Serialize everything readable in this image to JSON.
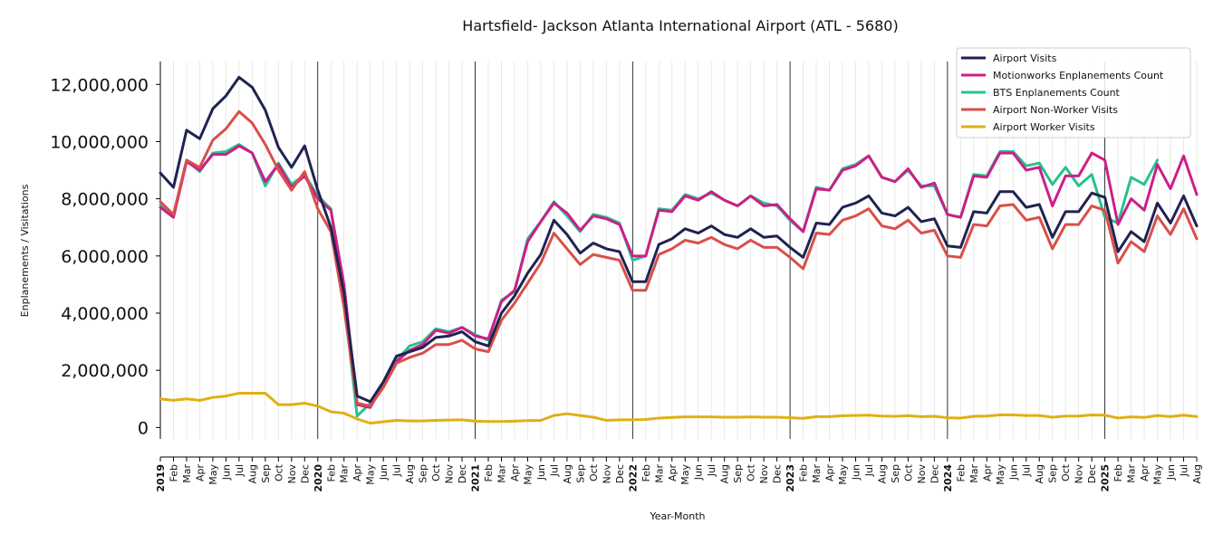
{
  "chart_data": {
    "type": "line",
    "title": "Hartsfield- Jackson Atlanta International Airport (ATL - 5680)",
    "xlabel": "Year-Month",
    "ylabel": "Enplanements / Visitations",
    "ylim": [
      -400000,
      12800000
    ],
    "yticks": [
      0,
      2000000,
      4000000,
      6000000,
      8000000,
      10000000,
      12000000
    ],
    "ytick_labels": [
      "0",
      "2,000,000",
      "4,000,000",
      "6,000,000",
      "8,000,000",
      "10,000,000",
      "12,000,000"
    ],
    "x_labels": [
      "2019",
      "Feb",
      "Mar",
      "Apr",
      "May",
      "Jun",
      "Jul",
      "Aug",
      "Sep",
      "Oct",
      "Nov",
      "Dec",
      "2020",
      "Feb",
      "Mar",
      "Apr",
      "May",
      "Jun",
      "Jul",
      "Aug",
      "Sep",
      "Oct",
      "Nov",
      "Dec",
      "2021",
      "Feb",
      "Mar",
      "Apr",
      "May",
      "Jun",
      "Jul",
      "Aug",
      "Sep",
      "Oct",
      "Nov",
      "Dec",
      "2022",
      "Feb",
      "Mar",
      "Apr",
      "May",
      "Jun",
      "Jul",
      "Aug",
      "Sep",
      "Oct",
      "Nov",
      "Dec",
      "2023",
      "Feb",
      "Mar",
      "Apr",
      "May",
      "Jun",
      "Jul",
      "Aug",
      "Sep",
      "Oct",
      "Nov",
      "Dec",
      "2024",
      "Feb",
      "Mar",
      "Apr",
      "May",
      "Jun",
      "Jul",
      "Aug",
      "Sep",
      "Oct",
      "Nov",
      "Dec",
      "2025",
      "Feb",
      "Mar",
      "Apr",
      "May",
      "Jun",
      "Jul",
      "Aug"
    ],
    "year_boundaries": [
      "2020",
      "2021",
      "2022",
      "2023",
      "2024",
      "2025"
    ],
    "grid": true,
    "legend_position": "top-right",
    "series": [
      {
        "name": "Airport Visits",
        "color": "#1f2352",
        "values": [
          8900000,
          8400000,
          10400000,
          10100000,
          11150000,
          11600000,
          12250000,
          11900000,
          11100000,
          9800000,
          9100000,
          9850000,
          8300000,
          7000000,
          4700000,
          1100000,
          900000,
          1600000,
          2500000,
          2650000,
          2800000,
          3150000,
          3200000,
          3350000,
          3000000,
          2850000,
          4000000,
          4600000,
          5400000,
          6050000,
          7250000,
          6750000,
          6100000,
          6450000,
          6250000,
          6150000,
          5100000,
          5100000,
          6400000,
          6600000,
          6950000,
          6800000,
          7050000,
          6750000,
          6650000,
          6950000,
          6650000,
          6700000,
          6300000,
          5950000,
          7150000,
          7100000,
          7700000,
          7850000,
          8100000,
          7500000,
          7400000,
          7700000,
          7200000,
          7300000,
          6350000,
          6300000,
          7550000,
          7500000,
          8250000,
          8250000,
          7700000,
          7800000,
          6650000,
          7550000,
          7550000,
          8200000,
          8050000,
          6150000,
          6850000,
          6500000,
          7850000,
          7150000,
          8100000,
          7050000
        ]
      },
      {
        "name": "Motionworks Enplanements Count",
        "color": "#cc1f8a",
        "values": [
          7700000,
          7350000,
          9300000,
          9000000,
          9550000,
          9550000,
          9850000,
          9600000,
          8600000,
          9200000,
          8400000,
          8800000,
          8000000,
          7600000,
          5000000,
          800000,
          700000,
          1500000,
          2300000,
          2700000,
          2900000,
          3400000,
          3300000,
          3500000,
          3200000,
          3100000,
          4400000,
          4800000,
          6500000,
          7200000,
          7850000,
          7500000,
          6900000,
          7400000,
          7300000,
          7100000,
          6000000,
          6000000,
          7600000,
          7550000,
          8100000,
          7950000,
          8250000,
          7950000,
          7750000,
          8100000,
          7750000,
          7800000,
          7300000,
          6850000,
          8350000,
          8300000,
          9000000,
          9150000,
          9500000,
          8750000,
          8600000,
          9050000,
          8400000,
          8550000,
          7450000,
          7350000,
          8800000,
          8750000,
          9600000,
          9600000,
          9000000,
          9100000,
          7750000,
          8800000,
          8800000,
          9600000,
          9350000,
          7100000,
          8000000,
          7600000,
          9200000,
          8350000,
          9500000,
          8150000
        ]
      },
      {
        "name": "BTS Enplanements Count",
        "color": "#27c28c",
        "values": [
          7800000,
          7400000,
          9350000,
          8950000,
          9600000,
          9650000,
          9900000,
          9600000,
          8450000,
          9250000,
          8500000,
          8850000,
          8100000,
          7650000,
          4500000,
          400000,
          850000,
          1550000,
          2350000,
          2850000,
          3000000,
          3450000,
          3350000,
          3500000,
          3250000,
          3050000,
          4450000,
          4750000,
          6600000,
          7200000,
          7900000,
          7400000,
          6850000,
          7450000,
          7350000,
          7150000,
          5850000,
          6000000,
          7650000,
          7600000,
          8150000,
          8000000,
          8200000,
          7950000,
          7750000,
          8100000,
          7850000,
          7750000,
          7250000,
          6850000,
          8400000,
          8300000,
          9050000,
          9200000,
          9500000,
          8750000,
          8600000,
          9000000,
          8450000,
          8450000,
          7450000,
          7350000,
          8850000,
          8800000,
          9650000,
          9650000,
          9150000,
          9250000,
          8500000,
          9100000,
          8450000,
          8850000,
          7350000,
          7150000,
          8750000,
          8500000,
          9350000,
          null,
          null,
          null
        ]
      },
      {
        "name": "Airport Non-Worker Visits",
        "color": "#d94f4a",
        "values": [
          7900000,
          7450000,
          9350000,
          9100000,
          10050000,
          10450000,
          11050000,
          10650000,
          9900000,
          9000000,
          8300000,
          8950000,
          7650000,
          6850000,
          4200000,
          850000,
          750000,
          1400000,
          2250000,
          2450000,
          2600000,
          2900000,
          2900000,
          3050000,
          2750000,
          2650000,
          3750000,
          4350000,
          5050000,
          5750000,
          6800000,
          6250000,
          5700000,
          6050000,
          5950000,
          5850000,
          4800000,
          4800000,
          6050000,
          6250000,
          6550000,
          6450000,
          6650000,
          6400000,
          6250000,
          6550000,
          6300000,
          6300000,
          5950000,
          5550000,
          6800000,
          6750000,
          7250000,
          7400000,
          7650000,
          7050000,
          6950000,
          7250000,
          6800000,
          6900000,
          6000000,
          5950000,
          7100000,
          7050000,
          7750000,
          7800000,
          7250000,
          7350000,
          6250000,
          7100000,
          7100000,
          7750000,
          7600000,
          5750000,
          6500000,
          6150000,
          7400000,
          6750000,
          7650000,
          6600000
        ]
      },
      {
        "name": "Airport Worker Visits",
        "color": "#e0b014",
        "values": [
          1000000,
          950000,
          1000000,
          950000,
          1050000,
          1100000,
          1200000,
          1200000,
          1200000,
          800000,
          800000,
          850000,
          750000,
          550000,
          500000,
          300000,
          150000,
          200000,
          250000,
          230000,
          230000,
          250000,
          260000,
          270000,
          220000,
          210000,
          210000,
          220000,
          240000,
          250000,
          420000,
          480000,
          420000,
          360000,
          250000,
          270000,
          270000,
          280000,
          330000,
          350000,
          370000,
          370000,
          370000,
          360000,
          360000,
          370000,
          360000,
          360000,
          340000,
          320000,
          380000,
          380000,
          410000,
          420000,
          430000,
          400000,
          390000,
          410000,
          380000,
          390000,
          340000,
          330000,
          390000,
          400000,
          440000,
          440000,
          420000,
          420000,
          360000,
          400000,
          400000,
          440000,
          430000,
          330000,
          370000,
          350000,
          420000,
          380000,
          430000,
          380000
        ]
      }
    ]
  }
}
